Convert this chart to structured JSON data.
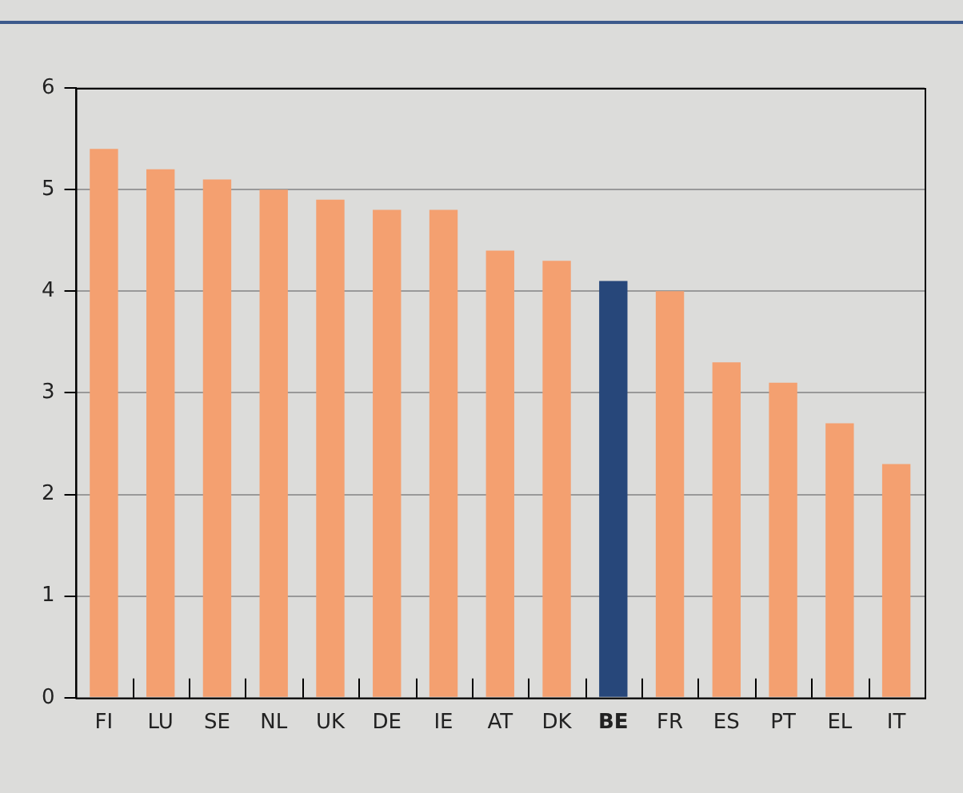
{
  "chart_data": {
    "type": "bar",
    "categories": [
      "FI",
      "LU",
      "SE",
      "NL",
      "UK",
      "DE",
      "IE",
      "AT",
      "DK",
      "BE",
      "FR",
      "ES",
      "PT",
      "EL",
      "IT"
    ],
    "values": [
      5.4,
      5.2,
      5.1,
      5.0,
      4.9,
      4.8,
      4.8,
      4.4,
      4.3,
      4.1,
      4.0,
      3.3,
      3.1,
      2.7,
      2.3
    ],
    "colors": [
      "#f4a070",
      "#f4a070",
      "#f4a070",
      "#f4a070",
      "#f4a070",
      "#f4a070",
      "#f4a070",
      "#f4a070",
      "#f4a070",
      "#27477a",
      "#f4a070",
      "#f4a070",
      "#f4a070",
      "#f4a070",
      "#f4a070"
    ],
    "ylim": [
      0,
      6
    ],
    "yticks": [
      0,
      1,
      2,
      3,
      4,
      5,
      6
    ],
    "grid": "y",
    "legend": false
  }
}
